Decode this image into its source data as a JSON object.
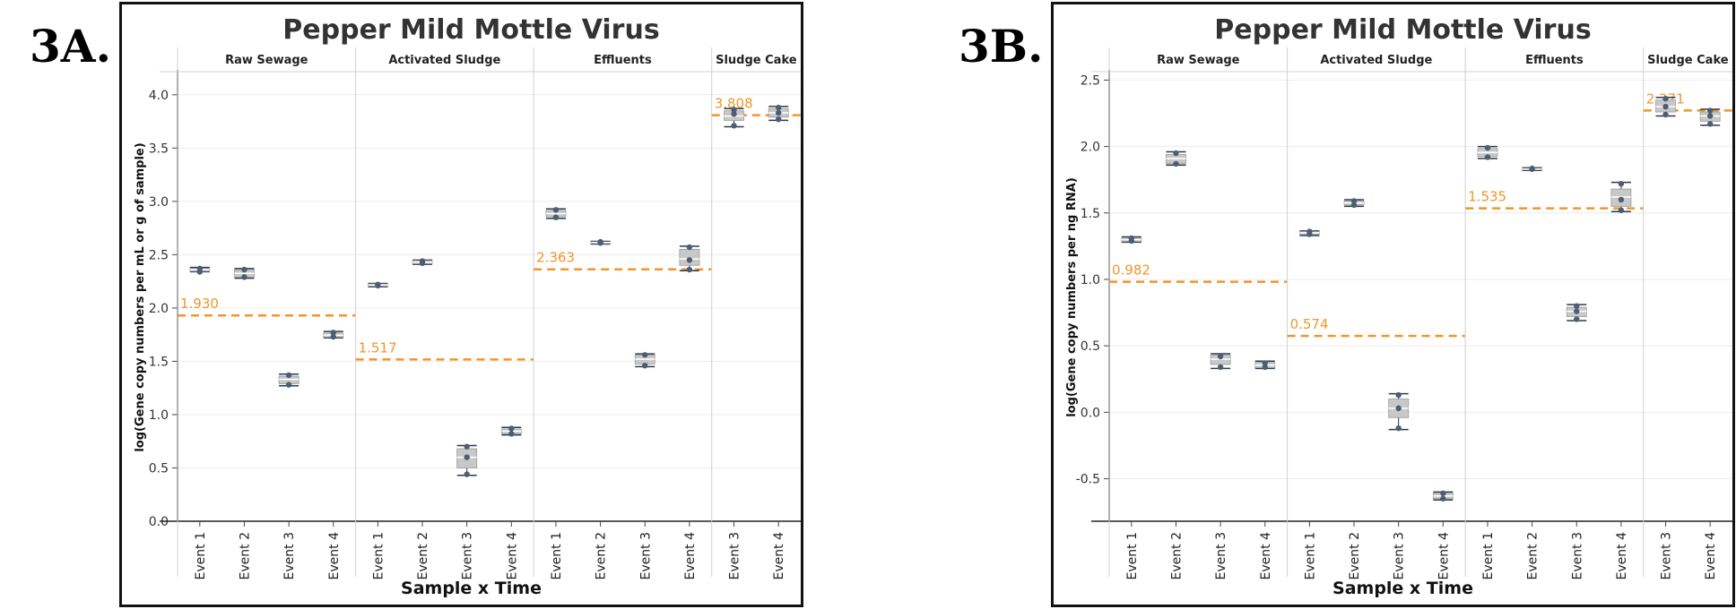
{
  "panels": [
    {
      "label": "3A.",
      "chart_data": {
        "type": "boxplot",
        "title": "Pepper Mild Mottle Virus",
        "xlabel": "Sample x Time",
        "ylabel": "log(Gene copy numbers per mL or g of sample)",
        "ylim": [
          0.0,
          4.2
        ],
        "yticks": [
          "0.0",
          "0.5",
          "1.0",
          "1.5",
          "2.0",
          "2.5",
          "3.0",
          "3.5",
          "4.0"
        ],
        "grid": true,
        "facets": [
          {
            "name": "Raw Sewage",
            "reference": {
              "value": 1.93,
              "label": "1.930"
            },
            "events": [
              {
                "label": "Event 1",
                "min": 2.34,
                "q1": 2.345,
                "median": 2.36,
                "q3": 2.37,
                "max": 2.38,
                "points": [
                  2.34,
                  2.37
                ]
              },
              {
                "label": "Event 2",
                "min": 2.28,
                "q1": 2.29,
                "median": 2.325,
                "q3": 2.36,
                "max": 2.37,
                "points": [
                  2.29,
                  2.36
                ]
              },
              {
                "label": "Event 3",
                "min": 1.27,
                "q1": 1.29,
                "median": 1.33,
                "q3": 1.36,
                "max": 1.38,
                "points": [
                  1.28,
                  1.37
                ]
              },
              {
                "label": "Event 4",
                "min": 1.72,
                "q1": 1.725,
                "median": 1.745,
                "q3": 1.765,
                "max": 1.78,
                "points": [
                  1.73,
                  1.77
                ]
              }
            ]
          },
          {
            "name": "Activated Sludge",
            "reference": {
              "value": 1.517,
              "label": "1.517"
            },
            "events": [
              {
                "label": "Event 1",
                "min": 2.2,
                "q1": 2.205,
                "median": 2.215,
                "q3": 2.225,
                "max": 2.23,
                "points": [
                  2.21,
                  2.22
                ]
              },
              {
                "label": "Event 2",
                "min": 2.41,
                "q1": 2.415,
                "median": 2.43,
                "q3": 2.445,
                "max": 2.45,
                "points": [
                  2.42,
                  2.44
                ]
              },
              {
                "label": "Event 3",
                "min": 0.43,
                "q1": 0.5,
                "median": 0.6,
                "q3": 0.68,
                "max": 0.71,
                "points": [
                  0.44,
                  0.6,
                  0.7
                ]
              },
              {
                "label": "Event 4",
                "min": 0.81,
                "q1": 0.82,
                "median": 0.845,
                "q3": 0.865,
                "max": 0.88,
                "points": [
                  0.82,
                  0.87
                ]
              }
            ]
          },
          {
            "name": "Effluents",
            "reference": {
              "value": 2.363,
              "label": "2.363"
            },
            "events": [
              {
                "label": "Event 1",
                "min": 2.84,
                "q1": 2.855,
                "median": 2.885,
                "q3": 2.915,
                "max": 2.93,
                "points": [
                  2.85,
                  2.92
                ]
              },
              {
                "label": "Event 2",
                "min": 2.6,
                "q1": 2.605,
                "median": 2.615,
                "q3": 2.62,
                "max": 2.625,
                "points": [
                  2.61,
                  2.62
                ]
              },
              {
                "label": "Event 3",
                "min": 1.45,
                "q1": 1.475,
                "median": 1.52,
                "q3": 1.56,
                "max": 1.57,
                "points": [
                  1.46,
                  1.56
                ]
              },
              {
                "label": "Event 4",
                "min": 2.35,
                "q1": 2.4,
                "median": 2.46,
                "q3": 2.55,
                "max": 2.58,
                "points": [
                  2.36,
                  2.45,
                  2.57
                ]
              }
            ]
          },
          {
            "name": "Sludge Cake",
            "reference": {
              "value": 3.808,
              "label": "3.808"
            },
            "events": [
              {
                "label": "Event 3",
                "min": 3.7,
                "q1": 3.76,
                "median": 3.8,
                "q3": 3.85,
                "max": 3.87,
                "points": [
                  3.71,
                  3.82,
                  3.86
                ]
              },
              {
                "label": "Event 4",
                "min": 3.76,
                "q1": 3.79,
                "median": 3.83,
                "q3": 3.87,
                "max": 3.89,
                "points": [
                  3.77,
                  3.83,
                  3.88
                ]
              }
            ]
          }
        ]
      }
    },
    {
      "label": "3B.",
      "chart_data": {
        "type": "boxplot",
        "title": "Pepper Mild Mottle Virus",
        "xlabel": "Sample x Time",
        "ylabel": "log(Gene copy numbers per ng RNA)",
        "ylim": [
          -0.82,
          2.55
        ],
        "yticks": [
          "-0.5",
          "0.0",
          "0.5",
          "1.0",
          "1.5",
          "2.0",
          "2.5"
        ],
        "grid": true,
        "facets": [
          {
            "name": "Raw Sewage",
            "reference": {
              "value": 0.982,
              "label": "0.982"
            },
            "events": [
              {
                "label": "Event 1",
                "min": 1.28,
                "q1": 1.285,
                "median": 1.3,
                "q3": 1.31,
                "max": 1.32,
                "points": [
                  1.29,
                  1.31
                ]
              },
              {
                "label": "Event 2",
                "min": 1.86,
                "q1": 1.87,
                "median": 1.91,
                "q3": 1.94,
                "max": 1.96,
                "points": [
                  1.87,
                  1.95
                ]
              },
              {
                "label": "Event 3",
                "min": 0.33,
                "q1": 0.36,
                "median": 0.4,
                "q3": 0.43,
                "max": 0.44,
                "points": [
                  0.34,
                  0.42
                ]
              },
              {
                "label": "Event 4",
                "min": 0.33,
                "q1": 0.335,
                "median": 0.355,
                "q3": 0.375,
                "max": 0.385,
                "points": [
                  0.34,
                  0.37
                ]
              }
            ]
          },
          {
            "name": "Activated Sludge",
            "reference": {
              "value": 0.574,
              "label": "0.574"
            },
            "events": [
              {
                "label": "Event 1",
                "min": 1.33,
                "q1": 1.34,
                "median": 1.35,
                "q3": 1.36,
                "max": 1.365,
                "points": [
                  1.34,
                  1.36
                ]
              },
              {
                "label": "Event 2",
                "min": 1.55,
                "q1": 1.56,
                "median": 1.575,
                "q3": 1.59,
                "max": 1.6,
                "points": [
                  1.56,
                  1.59
                ]
              },
              {
                "label": "Event 3",
                "min": -0.13,
                "q1": -0.04,
                "median": 0.03,
                "q3": 0.1,
                "max": 0.14,
                "points": [
                  -0.12,
                  0.03,
                  0.13
                ]
              },
              {
                "label": "Event 4",
                "min": -0.66,
                "q1": -0.65,
                "median": -0.63,
                "q3": -0.61,
                "max": -0.6,
                "points": [
                  -0.65,
                  -0.61
                ]
              }
            ]
          },
          {
            "name": "Effluents",
            "reference": {
              "value": 1.535,
              "label": "1.535"
            },
            "events": [
              {
                "label": "Event 1",
                "min": 1.91,
                "q1": 1.925,
                "median": 1.955,
                "q3": 1.985,
                "max": 2.0,
                "points": [
                  1.92,
                  1.99
                ]
              },
              {
                "label": "Event 2",
                "min": 1.82,
                "q1": 1.825,
                "median": 1.83,
                "q3": 1.835,
                "max": 1.84,
                "points": [
                  1.83,
                  1.835
                ]
              },
              {
                "label": "Event 3",
                "min": 0.69,
                "q1": 0.72,
                "median": 0.76,
                "q3": 0.79,
                "max": 0.81,
                "points": [
                  0.7,
                  0.76,
                  0.8
                ]
              },
              {
                "label": "Event 4",
                "min": 1.51,
                "q1": 1.55,
                "median": 1.62,
                "q3": 1.68,
                "max": 1.73,
                "points": [
                  1.52,
                  1.6,
                  1.72
                ]
              }
            ]
          },
          {
            "name": "Sludge Cake",
            "reference": {
              "value": 2.271,
              "label": "2.271"
            },
            "events": [
              {
                "label": "Event 3",
                "min": 2.23,
                "q1": 2.26,
                "median": 2.3,
                "q3": 2.35,
                "max": 2.37,
                "points": [
                  2.24,
                  2.3,
                  2.36
                ]
              },
              {
                "label": "Event 4",
                "min": 2.16,
                "q1": 2.19,
                "median": 2.23,
                "q3": 2.26,
                "max": 2.28,
                "points": [
                  2.17,
                  2.23,
                  2.27
                ]
              }
            ]
          }
        ]
      }
    }
  ],
  "colors": {
    "reference": "#f0962a",
    "point": "#4d5e73",
    "box": "#c8c8c8",
    "whisker": "#2b3a4f",
    "grid": "#ececec",
    "divider": "#d0d0d0"
  }
}
